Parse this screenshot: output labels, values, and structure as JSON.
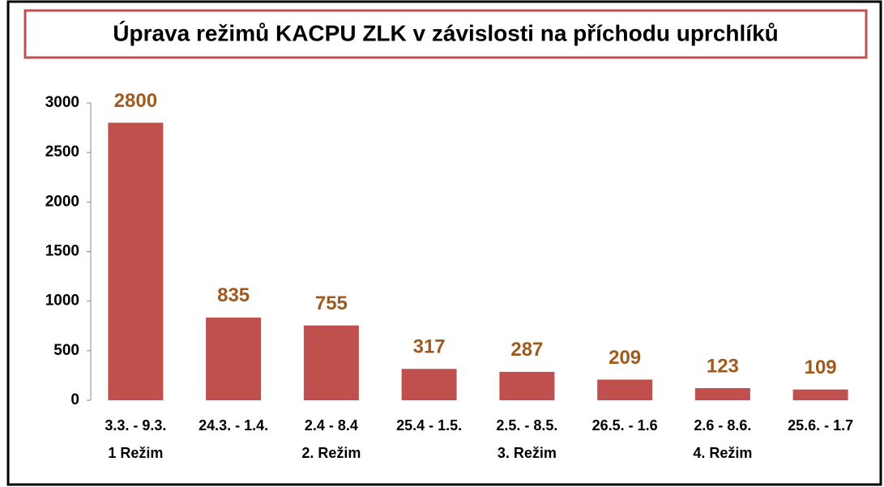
{
  "chart_data": {
    "type": "bar",
    "title": "Úprava režimů KACPU ZLK v závislosti na příchodu uprchlíků",
    "categories": [
      "3.3. -  9.3.",
      "24.3. - 1.4.",
      "2.4 - 8.4",
      "25.4 - 1.5.",
      "2.5. - 8.5.",
      "26.5. - 1.6",
      "2.6 - 8.6.",
      "25.6. - 1.7"
    ],
    "sublabels": [
      "1 Režim",
      null,
      "2. Režim",
      null,
      "3. Režim",
      null,
      "4. Režim",
      null
    ],
    "values": [
      2800,
      835,
      755,
      317,
      287,
      209,
      123,
      109
    ],
    "color": "#c0504d",
    "label_color": "#a05a1e",
    "ylim": [
      0,
      3000
    ],
    "yticks": [
      0,
      500,
      1000,
      1500,
      2000,
      2500,
      3000
    ],
    "grid": false
  }
}
